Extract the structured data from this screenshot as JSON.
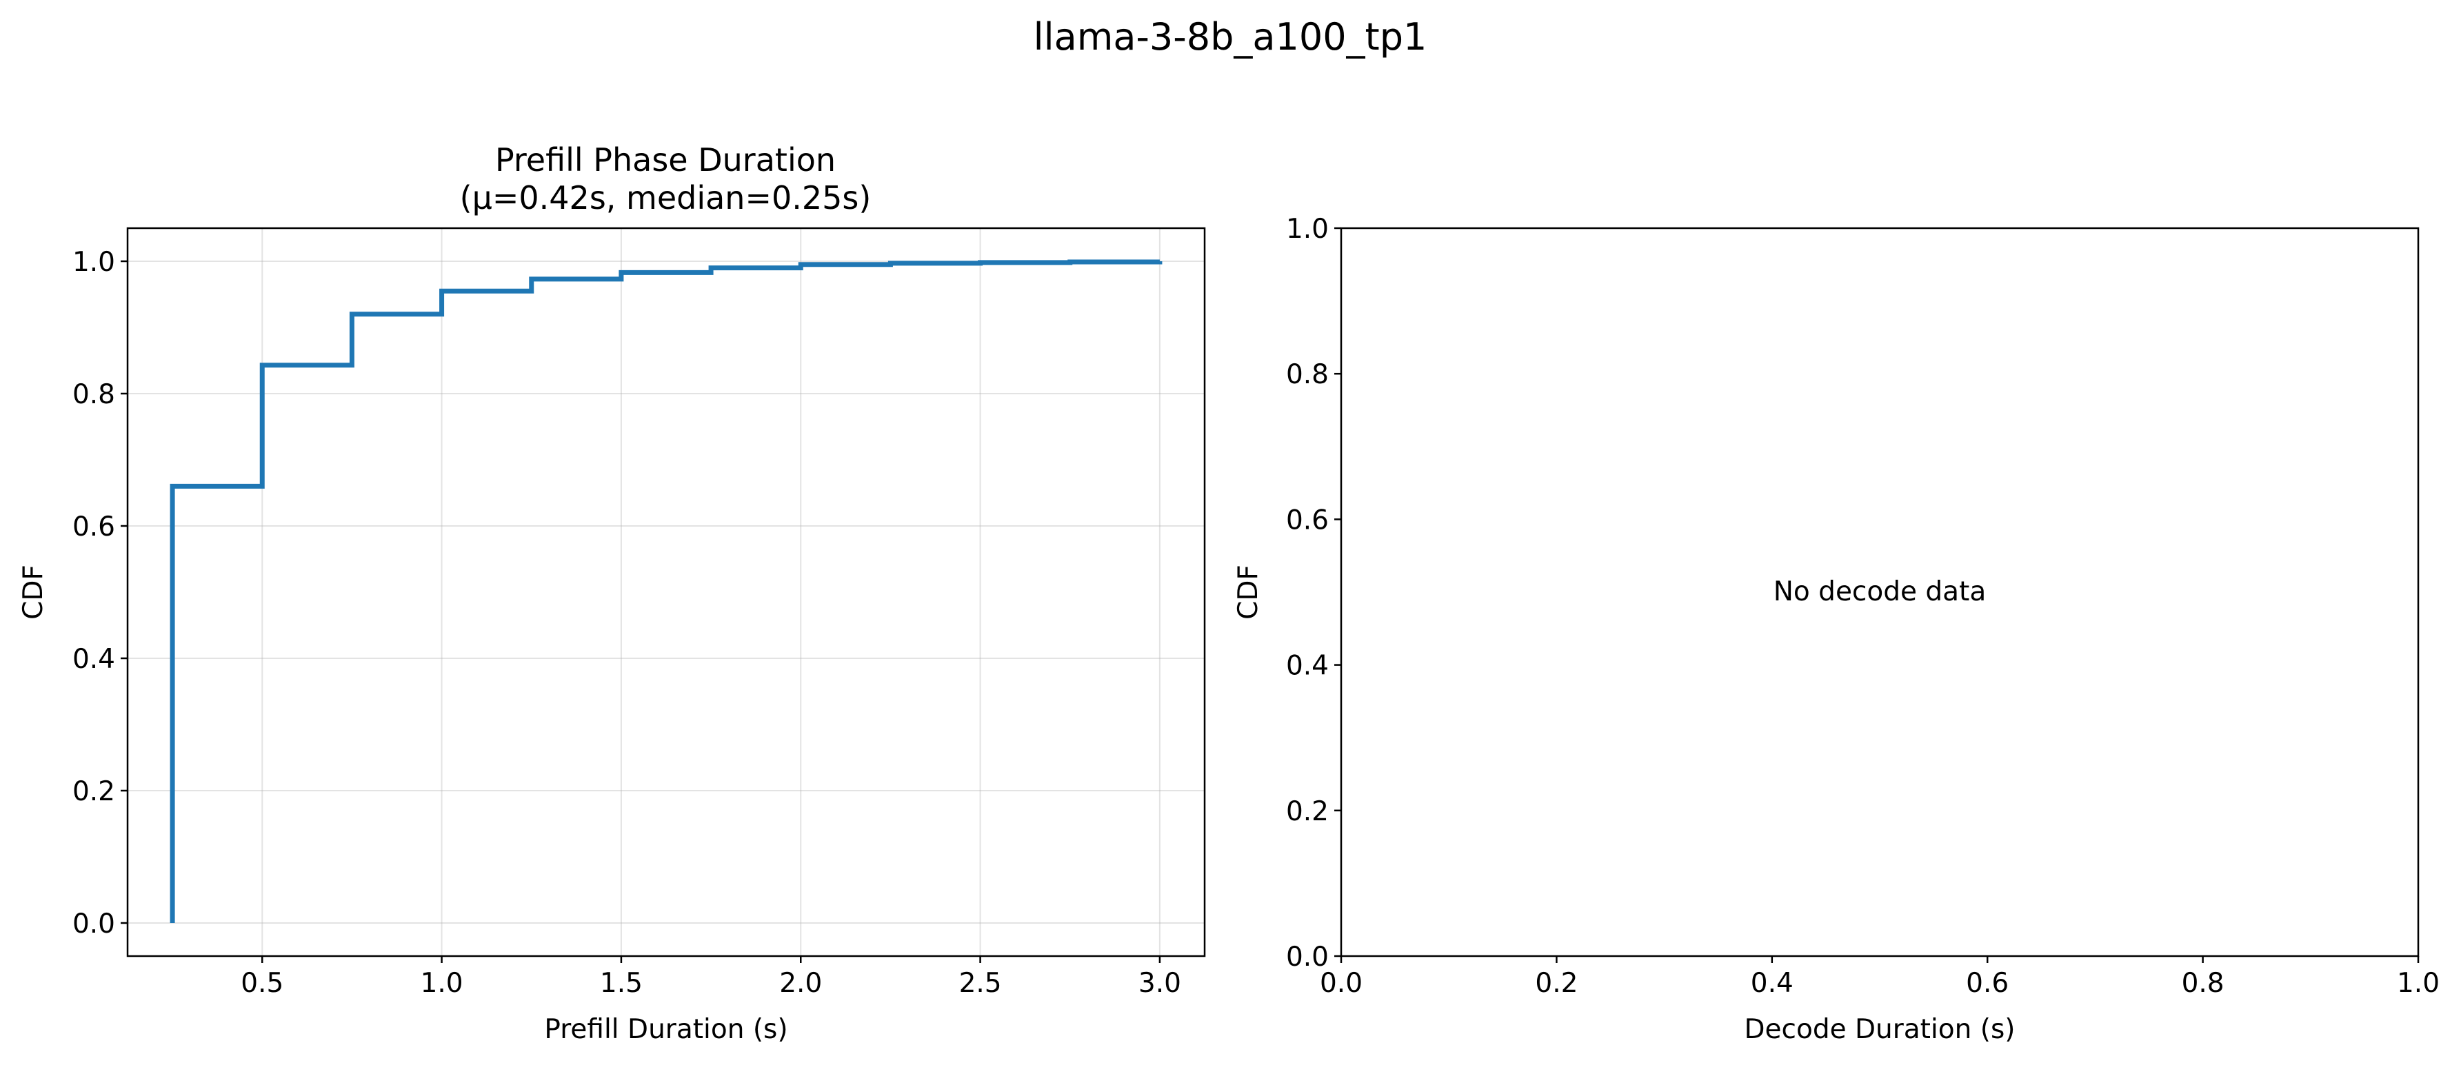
{
  "figure": {
    "suptitle": "llama-3-8b_a100_tp1"
  },
  "chart_data": [
    {
      "type": "line",
      "title_line1": "Prefill Phase Duration",
      "title_line2": "(μ=0.42s, median=0.25s)",
      "xlabel": "Prefill Duration (s)",
      "ylabel": "CDF",
      "xlim": [
        0.125,
        3.125
      ],
      "ylim": [
        -0.05,
        1.05
      ],
      "xticks": [
        0.5,
        1.0,
        1.5,
        2.0,
        2.5,
        3.0
      ],
      "xtick_labels": [
        "0.5",
        "1.0",
        "1.5",
        "2.0",
        "2.5",
        "3.0"
      ],
      "yticks": [
        0.0,
        0.2,
        0.4,
        0.6,
        0.8,
        1.0
      ],
      "ytick_labels": [
        "0.0",
        "0.2",
        "0.4",
        "0.6",
        "0.8",
        "1.0"
      ],
      "grid": true,
      "line_color": "#1f77b4",
      "step": "post",
      "series": [
        {
          "x": [
            0.25,
            0.25,
            0.5,
            0.75,
            1.0,
            1.25,
            1.5,
            1.75,
            2.0,
            2.25,
            2.5,
            2.75,
            3.0
          ],
          "y": [
            0.0,
            0.66,
            0.843,
            0.92,
            0.955,
            0.973,
            0.983,
            0.99,
            0.995,
            0.997,
            0.998,
            0.999,
            1.0
          ]
        }
      ]
    },
    {
      "type": "line",
      "title_line1": "",
      "title_line2": "",
      "xlabel": "Decode Duration (s)",
      "ylabel": "CDF",
      "xlim": [
        0.0,
        1.0
      ],
      "ylim": [
        0.0,
        1.0
      ],
      "xticks": [
        0.0,
        0.2,
        0.4,
        0.6,
        0.8,
        1.0
      ],
      "xtick_labels": [
        "0.0",
        "0.2",
        "0.4",
        "0.6",
        "0.8",
        "1.0"
      ],
      "yticks": [
        0.0,
        0.2,
        0.4,
        0.6,
        0.8,
        1.0
      ],
      "ytick_labels": [
        "0.0",
        "0.2",
        "0.4",
        "0.6",
        "0.8",
        "1.0"
      ],
      "grid": false,
      "annotation": "No decode data",
      "series": []
    }
  ]
}
